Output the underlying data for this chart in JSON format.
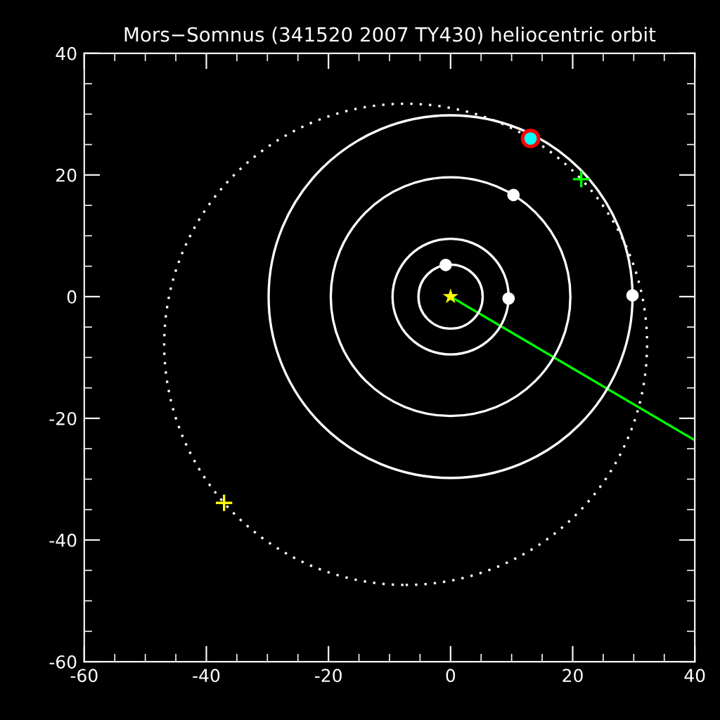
{
  "chart_data": {
    "type": "line",
    "title": "Mors−Somnus (341520 2007 TY430) heliocentric orbit",
    "xlim": [
      -60,
      40
    ],
    "ylim": [
      -60,
      40
    ],
    "xticks": [
      -60,
      {
        "value": -55,
        "label": null
      },
      {
        "value": -50,
        "label": null
      },
      {
        "value": -45,
        "label": null
      },
      -40,
      {
        "value": -35,
        "label": null
      },
      {
        "value": -30,
        "label": null
      },
      {
        "value": -25,
        "label": null
      },
      -20,
      {
        "value": -15,
        "label": null
      },
      {
        "value": -10,
        "label": null
      },
      {
        "value": -5,
        "label": null
      },
      0,
      {
        "value": 5,
        "label": null
      },
      {
        "value": 10,
        "label": null
      },
      {
        "value": 15,
        "label": null
      },
      20,
      {
        "value": 25,
        "label": null
      },
      {
        "value": 30,
        "label": null
      },
      {
        "value": 35,
        "label": null
      },
      40
    ],
    "yticks": [
      -60,
      {
        "value": -55,
        "label": null
      },
      {
        "value": -50,
        "label": null
      },
      {
        "value": -45,
        "label": null
      },
      -40,
      {
        "value": -35,
        "label": null
      },
      {
        "value": -30,
        "label": null
      },
      {
        "value": -25,
        "label": null
      },
      -20,
      {
        "value": -15,
        "label": null
      },
      {
        "value": -10,
        "label": null
      },
      {
        "value": -5,
        "label": null
      },
      0,
      {
        "value": 5,
        "label": null
      },
      {
        "value": 10,
        "label": null
      },
      {
        "value": 15,
        "label": null
      },
      20,
      {
        "value": 25,
        "label": null
      },
      {
        "value": 30,
        "label": null
      },
      {
        "value": 35,
        "label": null
      },
      40
    ],
    "grid": false,
    "legend": false,
    "series": [
      {
        "line_style": "solid",
        "color": "#00ff00",
        "x": [
          0,
          40
        ],
        "values": [
          0,
          -23.6
        ]
      },
      {
        "type": "scatter",
        "marker": "circle",
        "color": "#ffffff",
        "x": [
          -0.8,
          9.5,
          10.3,
          29.8
        ],
        "values": [
          5.2,
          -0.3,
          16.7,
          0.2
        ]
      },
      {
        "type": "scatter",
        "marker": "circle",
        "color": "#ff0000",
        "sizes": [
          1
        ],
        "x": [
          13.1
        ],
        "values": [
          26.0
        ]
      },
      {
        "type": "scatter",
        "marker": "circle",
        "color": "#00ffff",
        "x": [
          13.1
        ],
        "values": [
          26.0
        ]
      },
      {
        "type": "scatter",
        "marker": "cross",
        "color": "#00ff00",
        "x": [
          21.4
        ],
        "values": [
          19.3
        ]
      },
      {
        "type": "scatter",
        "marker": "cross",
        "color": "#ffff00",
        "x": [
          -37.1
        ],
        "values": [
          -33.9
        ]
      },
      {
        "type": "scatter",
        "marker": "star",
        "color": "#ffff00",
        "x": [
          0
        ],
        "values": [
          0
        ]
      }
    ]
  }
}
